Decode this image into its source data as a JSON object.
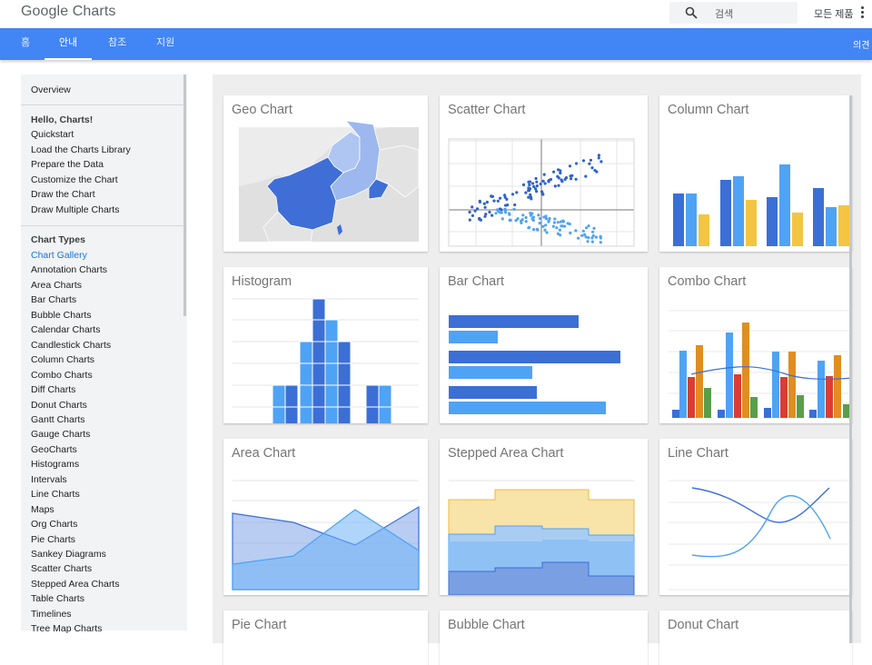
{
  "header": {
    "logo": "Google Charts",
    "search_placeholder": "검색",
    "all_products": "모든 제품"
  },
  "tabs": [
    {
      "label": "홈"
    },
    {
      "label": "안내"
    },
    {
      "label": "참조"
    },
    {
      "label": "지원"
    }
  ],
  "feedback": "의견",
  "sidebar": {
    "overview": "Overview",
    "intro_heading": "Hello, Charts!",
    "intro_items": [
      "Quickstart",
      "Load the Charts Library",
      "Prepare the Data",
      "Customize the Chart",
      "Draw the Chart",
      "Draw Multiple Charts"
    ],
    "types_heading": "Chart Types",
    "types_items": [
      "Chart Gallery",
      "Annotation Charts",
      "Area Charts",
      "Bar Charts",
      "Bubble Charts",
      "Calendar Charts",
      "Candlestick Charts",
      "Column Charts",
      "Combo Charts",
      "Diff Charts",
      "Donut Charts",
      "Gantt Charts",
      "Gauge Charts",
      "GeoCharts",
      "Histograms",
      "Intervals",
      "Line Charts",
      "Maps",
      "Org Charts",
      "Pie Charts",
      "Sankey Diagrams",
      "Scatter Charts",
      "Stepped Area Charts",
      "Table Charts",
      "Timelines",
      "Tree Map Charts"
    ]
  },
  "gallery": {
    "cards": [
      {
        "title": "Geo Chart"
      },
      {
        "title": "Scatter Chart"
      },
      {
        "title": "Column Chart"
      },
      {
        "title": "Histogram"
      },
      {
        "title": "Bar Chart"
      },
      {
        "title": "Combo Chart"
      },
      {
        "title": "Area Chart"
      },
      {
        "title": "Stepped Area Chart"
      },
      {
        "title": "Line Chart"
      },
      {
        "title": "Pie Chart"
      },
      {
        "title": "Bubble Chart"
      },
      {
        "title": "Donut Chart"
      }
    ]
  },
  "colors": {
    "tab_bar": "#4285f4",
    "series_dark": "#3b6fd6",
    "series_light": "#4fa3f4",
    "series_yellow": "#f4c542",
    "series_orange": "#e08e21",
    "series_red": "#db3d32",
    "series_green": "#5a9e4b",
    "link_active": "#1a73e8"
  },
  "icons": {
    "search": "search-icon",
    "menu": "more-vert-icon"
  }
}
